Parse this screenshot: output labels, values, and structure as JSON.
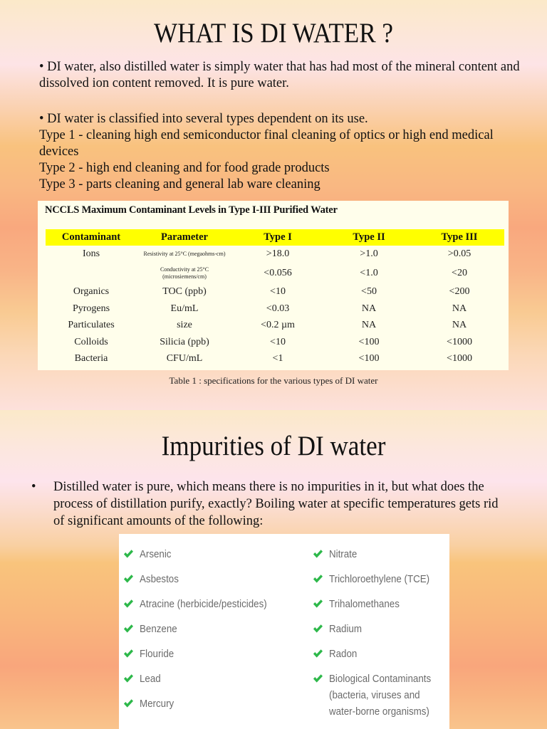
{
  "slide1": {
    "title": "WHAT IS DI WATER ?",
    "paragraph1": "• DI water, also distilled water is simply water that has had most of the mineral content and dissolved ion content removed. It is pure water.",
    "paragraph2_lines": [
      "• DI water is classified into several types dependent on its use.",
      "Type 1 - cleaning high end semiconductor final cleaning of optics or high end medical devices",
      "Type 2 - high end cleaning and for food grade products",
      "Type 3 - parts cleaning and general lab ware cleaning"
    ],
    "table": {
      "title": "NCCLS Maximum Contaminant Levels in Type I-III Purified Water",
      "header_color": "#ffff00",
      "background": "#fffeeb",
      "columns": [
        "Contaminant",
        "Parameter",
        "Type I",
        "Type II",
        "Type III"
      ],
      "rows": [
        [
          "Ions",
          "Resistivity at 25°C (megaohms-cm)",
          ">18.0",
          ">1.0",
          ">0.05"
        ],
        [
          "",
          "Conductivity at 25°C (microsiemens/cm)",
          "<0.056",
          "<1.0",
          "<20"
        ],
        [
          "Organics",
          "TOC (ppb)",
          "<10",
          "<50",
          "<200"
        ],
        [
          "Pyrogens",
          "Eu/mL",
          "<0.03",
          "NA",
          "NA"
        ],
        [
          "Particulates",
          "size",
          "<0.2 µm",
          "NA",
          "NA"
        ],
        [
          "Colloids",
          "Silicia (ppb)",
          "<10",
          "<100",
          "<1000"
        ],
        [
          "Bacteria",
          "CFU/mL",
          "<1",
          "<100",
          "<1000"
        ]
      ]
    },
    "caption": "Table 1 : specifications for the various types of DI water"
  },
  "slide2": {
    "title": "Impurities of DI water",
    "bullet_symbol": "•",
    "bullet_text": "Distilled water is pure, which means there is no impurities in it, but what does the process of distillation purify, exactly? Boiling water at specific temperatures gets rid of significant amounts of the following:",
    "check_color": "#2db84a",
    "list_left": [
      "Arsenic",
      "Asbestos",
      "Atracine (herbicide/pesticides)",
      "Benzene",
      "Flouride",
      "Lead",
      "Mercury"
    ],
    "list_right": [
      "Nitrate",
      "Trichloroethylene (TCE)",
      "Trihalomethanes",
      "Radium",
      "Radon",
      "Biological Contaminants (bacteria, viruses and water-borne organisms)"
    ]
  }
}
